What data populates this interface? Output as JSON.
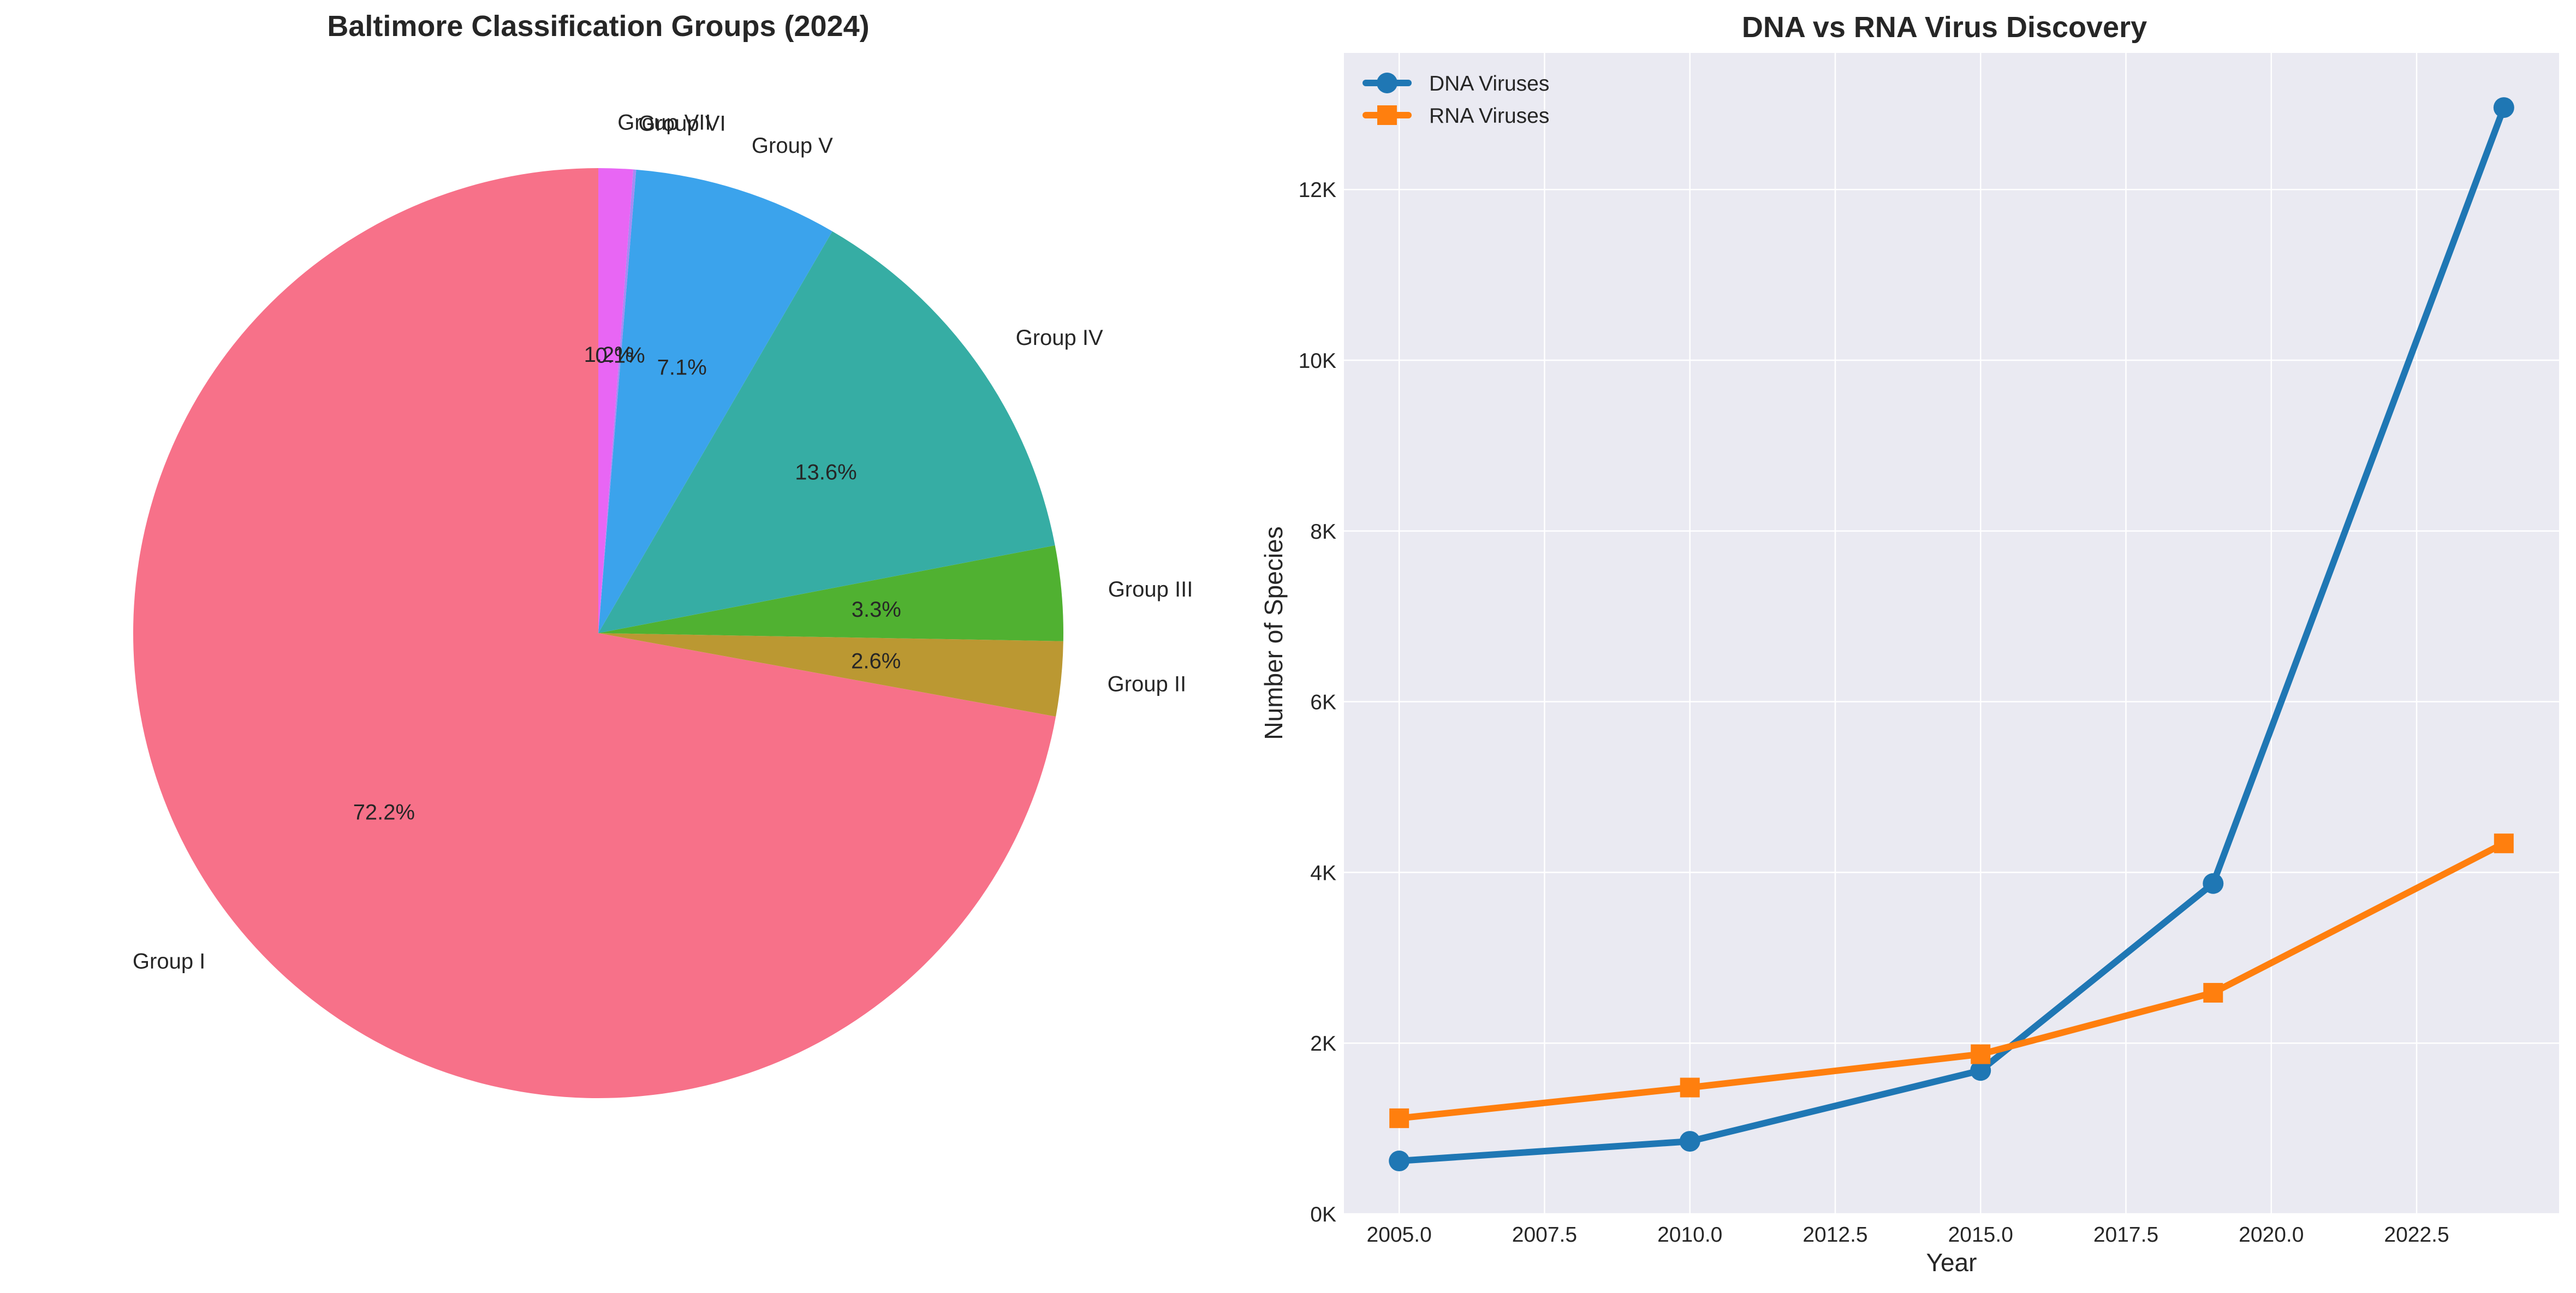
{
  "chart_data": [
    {
      "type": "pie",
      "title": "Baltimore Classification Groups (2024)",
      "start_angle_deg": 90,
      "direction": "counterclockwise",
      "slices": [
        {
          "label": "Group I",
          "value": 72.2,
          "pct_label": "72.2%",
          "color": "#f77189"
        },
        {
          "label": "Group II",
          "value": 2.6,
          "pct_label": "2.6%",
          "color": "#bb9832"
        },
        {
          "label": "Group III",
          "value": 3.3,
          "pct_label": "3.3%",
          "color": "#50b131"
        },
        {
          "label": "Group IV",
          "value": 13.6,
          "pct_label": "13.6%",
          "color": "#36ada4"
        },
        {
          "label": "Group V",
          "value": 7.1,
          "pct_label": "7.1%",
          "color": "#3ba3ec"
        },
        {
          "label": "Group VI",
          "value": 0.1,
          "pct_label": "0.1%",
          "color": "#a48cf4"
        },
        {
          "label": "Group VII",
          "value": 1.2,
          "pct_label": "1.2%",
          "color": "#e866f4"
        }
      ]
    },
    {
      "type": "line",
      "title": "DNA vs RNA Virus Discovery",
      "xlabel": "Year",
      "ylabel": "Number of Species",
      "xlim": [
        2004.05,
        2024.95
      ],
      "ylim": [
        0,
        13600
      ],
      "xticks": [
        2005.0,
        2007.5,
        2010.0,
        2012.5,
        2015.0,
        2017.5,
        2020.0,
        2022.5
      ],
      "xtick_labels": [
        "2005.0",
        "2007.5",
        "2010.0",
        "2012.5",
        "2015.0",
        "2017.5",
        "2020.0",
        "2022.5"
      ],
      "yticks": [
        0,
        2000,
        4000,
        6000,
        8000,
        10000,
        12000
      ],
      "ytick_labels": [
        "0K",
        "2K",
        "4K",
        "6K",
        "8K",
        "10K",
        "12K"
      ],
      "grid": true,
      "legend_position": "top-left",
      "x": [
        2005,
        2010,
        2015,
        2019,
        2024
      ],
      "series": [
        {
          "name": "DNA Viruses",
          "marker": "circle",
          "color": "#1f77b4",
          "values": [
            620,
            850,
            1680,
            3870,
            12960
          ]
        },
        {
          "name": "RNA Viruses",
          "marker": "square",
          "color": "#ff7f0e",
          "values": [
            1120,
            1480,
            1870,
            2590,
            4340
          ]
        }
      ]
    }
  ]
}
